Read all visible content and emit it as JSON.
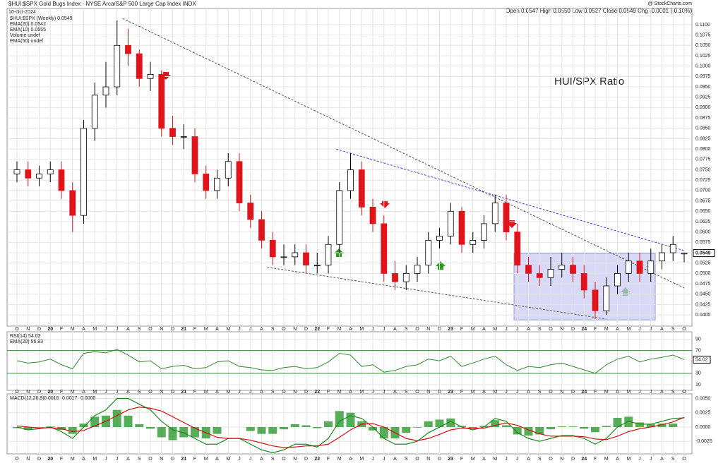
{
  "chart_data": {
    "type": "candlestick",
    "header": {
      "symbol": "$HUI:$SPX Gold Bugs Index - NYSE Arca/S&P 500 Large Cap Index INDX",
      "date": "10-Oct-2024",
      "ohlc": "Open 0.0547  High 0.0550  Low 0.0527  Close 0.0549  Chg -0.0001 (-0.10%)",
      "credit": "@ StockCharts.com"
    },
    "legend": [
      "$HUI:$SPX (Weekly) 0.0549",
      "EMA(20) 0.0542",
      "EMA(10) 0.0555",
      "Volume undef",
      "EMA(50) undef"
    ],
    "annotation": "HUI/SPX Ratio",
    "last_price_label": "0.0549",
    "categories": [
      "O",
      "N",
      "D",
      "20",
      "F",
      "M",
      "A",
      "M",
      "J",
      "J",
      "A",
      "S",
      "O",
      "N",
      "D",
      "21",
      "F",
      "M",
      "A",
      "M",
      "J",
      "J",
      "A",
      "S",
      "O",
      "N",
      "D",
      "22",
      "F",
      "M",
      "A",
      "M",
      "J",
      "J",
      "A",
      "S",
      "O",
      "N",
      "D",
      "23",
      "F",
      "M",
      "A",
      "M",
      "J",
      "J",
      "A",
      "S",
      "O",
      "N",
      "D",
      "24",
      "F",
      "M",
      "A",
      "M",
      "J",
      "J",
      "A",
      "S",
      "O"
    ],
    "open": [
      0.074,
      0.075,
      0.073,
      0.074,
      0.075,
      0.07,
      0.064,
      0.085,
      0.093,
      0.095,
      0.105,
      0.103,
      0.097,
      0.098,
      0.085,
      0.083,
      0.083,
      0.074,
      0.07,
      0.073,
      0.077,
      0.067,
      0.063,
      0.058,
      0.054,
      0.054,
      0.055,
      0.052,
      0.052,
      0.057,
      0.07,
      0.075,
      0.066,
      0.062,
      0.05,
      0.048,
      0.05,
      0.052,
      0.058,
      0.059,
      0.065,
      0.057,
      0.058,
      0.062,
      0.067,
      0.06,
      0.052,
      0.05,
      0.049,
      0.051,
      0.052,
      0.05,
      0.046,
      0.041,
      0.047,
      0.05,
      0.053,
      0.05,
      0.053,
      0.055,
      0.0547
    ],
    "high": [
      0.077,
      0.077,
      0.076,
      0.077,
      0.077,
      0.072,
      0.087,
      0.096,
      0.101,
      0.111,
      0.109,
      0.104,
      0.101,
      0.099,
      0.088,
      0.086,
      0.085,
      0.076,
      0.075,
      0.079,
      0.079,
      0.069,
      0.065,
      0.06,
      0.057,
      0.057,
      0.057,
      0.055,
      0.059,
      0.072,
      0.079,
      0.077,
      0.068,
      0.064,
      0.053,
      0.052,
      0.054,
      0.06,
      0.061,
      0.067,
      0.066,
      0.06,
      0.064,
      0.069,
      0.069,
      0.062,
      0.054,
      0.052,
      0.054,
      0.055,
      0.054,
      0.052,
      0.048,
      0.049,
      0.052,
      0.055,
      0.055,
      0.056,
      0.057,
      0.059,
      0.055
    ],
    "low": [
      0.072,
      0.071,
      0.071,
      0.072,
      0.068,
      0.06,
      0.062,
      0.082,
      0.09,
      0.093,
      0.1,
      0.095,
      0.094,
      0.083,
      0.081,
      0.08,
      0.072,
      0.068,
      0.068,
      0.071,
      0.065,
      0.061,
      0.056,
      0.052,
      0.052,
      0.052,
      0.05,
      0.05,
      0.05,
      0.055,
      0.068,
      0.064,
      0.06,
      0.048,
      0.046,
      0.046,
      0.048,
      0.05,
      0.056,
      0.057,
      0.055,
      0.055,
      0.056,
      0.06,
      0.058,
      0.05,
      0.048,
      0.047,
      0.047,
      0.049,
      0.048,
      0.044,
      0.039,
      0.04,
      0.045,
      0.048,
      0.048,
      0.048,
      0.051,
      0.053,
      0.0527
    ],
    "close": [
      0.075,
      0.073,
      0.074,
      0.075,
      0.07,
      0.064,
      0.085,
      0.093,
      0.095,
      0.105,
      0.103,
      0.097,
      0.098,
      0.085,
      0.083,
      0.083,
      0.074,
      0.07,
      0.073,
      0.077,
      0.067,
      0.063,
      0.058,
      0.054,
      0.054,
      0.055,
      0.052,
      0.052,
      0.057,
      0.07,
      0.075,
      0.066,
      0.062,
      0.05,
      0.048,
      0.05,
      0.052,
      0.058,
      0.059,
      0.065,
      0.057,
      0.058,
      0.062,
      0.067,
      0.06,
      0.052,
      0.05,
      0.049,
      0.051,
      0.052,
      0.05,
      0.046,
      0.041,
      0.047,
      0.05,
      0.053,
      0.05,
      0.053,
      0.055,
      0.057,
      0.0549
    ],
    "up_color": "#ffffff",
    "down_color": "#e0151b",
    "ylim": [
      0.0373,
      0.1139
    ],
    "yticks": [
      {
        "value": 0.04,
        "label": "0.0400"
      },
      {
        "value": 0.0425,
        "label": "0.0425"
      },
      {
        "value": 0.045,
        "label": "0.0450"
      },
      {
        "value": 0.0475,
        "label": "0.0475"
      },
      {
        "value": 0.05,
        "label": "0.0500"
      },
      {
        "value": 0.0525,
        "label": "0.0525"
      },
      {
        "value": 0.055,
        "label": "0.0550"
      },
      {
        "value": 0.0575,
        "label": "0.0575"
      },
      {
        "value": 0.06,
        "label": "0.0600"
      },
      {
        "value": 0.0625,
        "label": "0.0625"
      },
      {
        "value": 0.065,
        "label": "0.0650"
      },
      {
        "value": 0.0675,
        "label": "0.0675"
      },
      {
        "value": 0.07,
        "label": "0.0700"
      },
      {
        "value": 0.0725,
        "label": "0.0725"
      },
      {
        "value": 0.075,
        "label": "0.0750"
      },
      {
        "value": 0.0775,
        "label": "0.0775"
      },
      {
        "value": 0.08,
        "label": "0.0800"
      },
      {
        "value": 0.0825,
        "label": "0.0825"
      },
      {
        "value": 0.085,
        "label": "0.0850"
      },
      {
        "value": 0.0875,
        "label": "0.0875"
      },
      {
        "value": 0.09,
        "label": "0.0900"
      },
      {
        "value": 0.0925,
        "label": "0.0925"
      },
      {
        "value": 0.095,
        "label": "0.0950"
      },
      {
        "value": 0.0975,
        "label": "0.0975"
      },
      {
        "value": 0.1,
        "label": "0.1000"
      },
      {
        "value": 0.1025,
        "label": "0.1025"
      },
      {
        "value": 0.105,
        "label": "0.1050"
      },
      {
        "value": 0.1075,
        "label": "0.1075"
      },
      {
        "value": 0.11,
        "label": "0.1100"
      }
    ],
    "grid": true,
    "trendlines": [
      {
        "x": [
          9.5,
          60
        ],
        "y": [
          0.1115,
          0.0465
        ],
        "color": "#555555"
      },
      {
        "x": [
          28.7,
          60
        ],
        "y": [
          0.08,
          0.0555
        ],
        "color": "#3344dd"
      },
      {
        "x": [
          22.5,
          53
        ],
        "y": [
          0.0515,
          0.039
        ],
        "color": "#555555"
      }
    ],
    "box": {
      "x": [
        44.7,
        57.4
      ],
      "y": [
        0.0388,
        0.0548
      ],
      "color": "#c8c8f4"
    },
    "rsi": {
      "legend": [
        "RSI(14) 54.02",
        "EMA(20) 56.83"
      ],
      "last_label": "54.02",
      "color": "#2e8b2e",
      "values": [
        52,
        48,
        50,
        55,
        45,
        38,
        65,
        68,
        66,
        72,
        62,
        50,
        52,
        38,
        42,
        44,
        38,
        40,
        50,
        52,
        42,
        40,
        36,
        35,
        40,
        42,
        38,
        40,
        50,
        65,
        62,
        42,
        45,
        32,
        35,
        42,
        45,
        55,
        52,
        60,
        42,
        48,
        55,
        60,
        45,
        35,
        42,
        40,
        45,
        48,
        42,
        36,
        30,
        45,
        55,
        60,
        50,
        55,
        58,
        62,
        54.02
      ],
      "ylim": [
        0,
        103
      ],
      "yticks": [
        90,
        70,
        30,
        10
      ]
    },
    "macd": {
      "label": "MACD(12,26,9)",
      "last_labels": [
        "0.0016",
        "0.0017",
        "0.0000"
      ],
      "colors": [
        "#1a8a1a",
        "#d01010",
        "#2e9a2e"
      ],
      "macd": [
        0,
        -0.0005,
        -0.0003,
        0,
        -0.0008,
        -0.002,
        0,
        0.002,
        0.003,
        0.005,
        0.005,
        0.004,
        0.003,
        0.001,
        -0.0005,
        -0.001,
        -0.002,
        -0.003,
        -0.003,
        -0.002,
        -0.002,
        -0.003,
        -0.004,
        -0.0045,
        -0.004,
        -0.003,
        -0.003,
        -0.0035,
        -0.002,
        0.001,
        0.002,
        0.0015,
        0,
        -0.002,
        -0.003,
        -0.003,
        -0.0025,
        -0.001,
        0,
        0.001,
        0,
        -0.0005,
        0,
        0.0015,
        0.001,
        -0.001,
        -0.002,
        -0.0025,
        -0.002,
        -0.0015,
        -0.0015,
        -0.002,
        -0.003,
        -0.002,
        0,
        0.001,
        0.0005,
        0.0005,
        0.001,
        0.0015,
        0.0016
      ],
      "signal": [
        0.0002,
        0,
        -0.0002,
        -0.0001,
        -0.0003,
        -0.0008,
        -0.0006,
        0.0002,
        0.001,
        0.002,
        0.003,
        0.0035,
        0.0033,
        0.0028,
        0.0018,
        0.0008,
        -0.0002,
        -0.001,
        -0.0018,
        -0.002,
        -0.002,
        -0.0023,
        -0.0028,
        -0.0033,
        -0.0036,
        -0.0035,
        -0.0033,
        -0.0033,
        -0.003,
        -0.0018,
        -0.0005,
        0.0005,
        0.0006,
        0,
        -0.001,
        -0.002,
        -0.0024,
        -0.002,
        -0.0013,
        -0.0005,
        -0.0002,
        -0.0002,
        -0.0002,
        0.0003,
        0.0007,
        0.0003,
        -0.0005,
        -0.0012,
        -0.0016,
        -0.0016,
        -0.0016,
        -0.0017,
        -0.0021,
        -0.0022,
        -0.0016,
        -0.0008,
        -0.0003,
        0,
        0.0004,
        0.0009,
        0.0017
      ],
      "histogram": [
        -0.0002,
        -0.0005,
        -0.0001,
        0.0001,
        -0.0005,
        -0.0012,
        0.0006,
        0.0018,
        0.002,
        0.003,
        0.002,
        0.0005,
        -0.0003,
        -0.0018,
        -0.0023,
        -0.0018,
        -0.0018,
        -0.002,
        -0.0012,
        0,
        0,
        -0.0007,
        -0.0012,
        -0.0012,
        -0.0004,
        0.0005,
        0.0003,
        -0.0002,
        0.001,
        0.0028,
        0.0025,
        0.001,
        -0.0006,
        -0.002,
        -0.002,
        -0.001,
        -0.0001,
        0.001,
        0.0013,
        0.0015,
        0.0002,
        -0.0003,
        0.0002,
        0.0012,
        0.0003,
        -0.0013,
        -0.0015,
        -0.0013,
        -0.0004,
        0.0001,
        0.0001,
        -0.0003,
        -0.0009,
        0.0002,
        0.0016,
        0.0018,
        0.0008,
        0.0005,
        0.0006,
        0.0006,
        0
      ],
      "ylim": [
        -0.0047,
        0.0058
      ],
      "yticks": [
        {
          "value": 0.005,
          "label": "0.0050"
        },
        {
          "value": 0.0025,
          "label": "0.0025"
        },
        {
          "value": 0,
          "label": "0.0000"
        },
        {
          "value": -0.0025,
          "label": "-0.0025"
        }
      ]
    }
  }
}
